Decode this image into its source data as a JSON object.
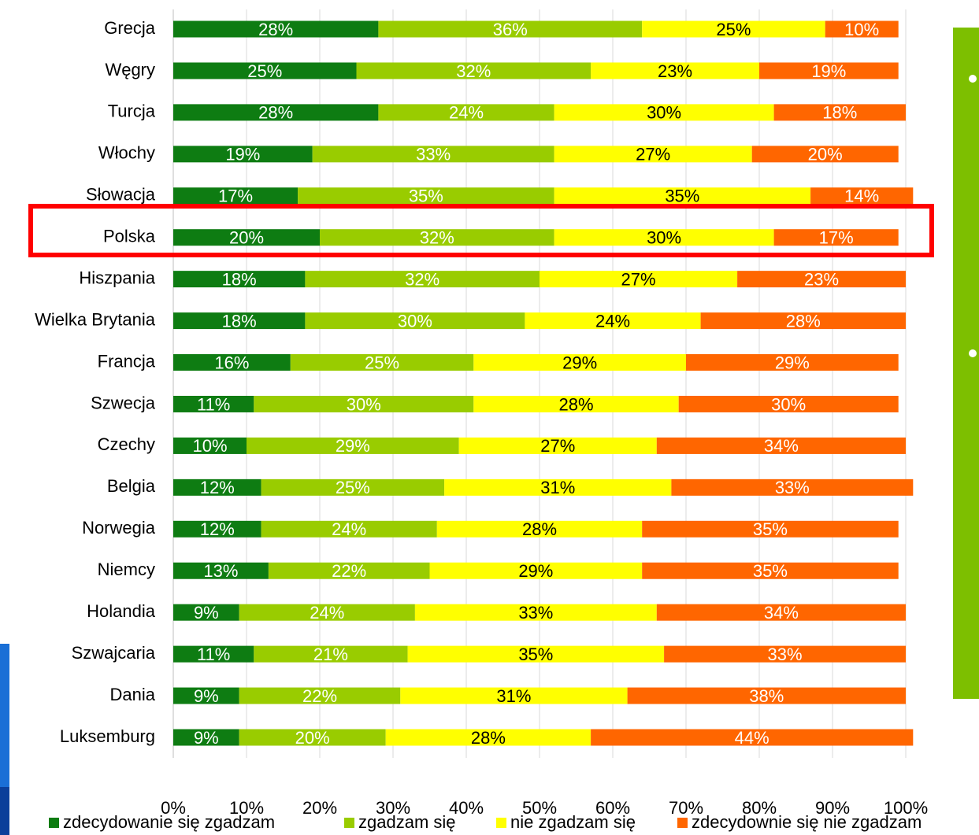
{
  "chart_data": {
    "type": "bar",
    "orientation": "horizontal",
    "stacked": true,
    "categories": [
      "Grecja",
      "Węgry",
      "Turcja",
      "Włochy",
      "Słowacja",
      "Polska",
      "Hiszpania",
      "Wielka Brytania",
      "Francja",
      "Szwecja",
      "Czechy",
      "Belgia",
      "Norwegia",
      "Niemcy",
      "Holandia",
      "Szwajcaria",
      "Dania",
      "Luksemburg"
    ],
    "series": [
      {
        "name": "zdecydowanie się zgadzam",
        "color": "#0e7c12",
        "label_color": "#ffffff",
        "values": [
          28,
          25,
          28,
          19,
          17,
          20,
          18,
          18,
          16,
          11,
          10,
          12,
          12,
          13,
          9,
          11,
          9,
          9
        ],
        "value_labels": [
          "28%",
          "25%",
          "28%",
          "19%",
          "17%",
          "20%",
          "18%",
          "18%",
          "16%",
          "11%",
          "10%",
          "12%",
          "12%",
          "13%",
          "9%",
          "11%",
          "9%",
          "9%"
        ]
      },
      {
        "name": "zgadzam się",
        "color": "#99cc00",
        "label_color": "#ffffff",
        "values": [
          36,
          32,
          24,
          33,
          35,
          32,
          32,
          30,
          25,
          30,
          29,
          25,
          24,
          22,
          24,
          21,
          22,
          20
        ],
        "value_labels": [
          "36%",
          "32%",
          "24%",
          "33%",
          "35%",
          "32%",
          "32%",
          "30%",
          "25%",
          "30%",
          "29%",
          "25%",
          "24%",
          "22%",
          "24%",
          "21%",
          "22%",
          "20%"
        ]
      },
      {
        "name": "nie zgadzam się",
        "color": "#ffff00",
        "label_color": "#000000",
        "values": [
          25,
          23,
          30,
          27,
          35,
          30,
          27,
          24,
          29,
          28,
          27,
          31,
          28,
          29,
          33,
          35,
          31,
          28
        ],
        "value_labels": [
          "25%",
          "23%",
          "30%",
          "27%",
          "35%",
          "30%",
          "27%",
          "24%",
          "29%",
          "28%",
          "27%",
          "31%",
          "28%",
          "29%",
          "33%",
          "35%",
          "31%",
          "28%"
        ]
      },
      {
        "name": "zdecydownie się nie zgadzam",
        "color": "#ff6600",
        "label_color": "#ffffff",
        "values": [
          10,
          19,
          18,
          20,
          14,
          17,
          23,
          28,
          29,
          30,
          34,
          33,
          35,
          35,
          34,
          33,
          38,
          44
        ],
        "value_labels": [
          "10%",
          "19%",
          "18%",
          "20%",
          "14%",
          "17%",
          "23%",
          "28%",
          "29%",
          "30%",
          "34%",
          "33%",
          "35%",
          "35%",
          "34%",
          "33%",
          "38%",
          "44%"
        ]
      }
    ],
    "xlim": [
      0,
      100
    ],
    "xticks": [
      {
        "value": 0,
        "label": "0%"
      },
      {
        "value": 10,
        "label": "10%"
      },
      {
        "value": 20,
        "label": "20%"
      },
      {
        "value": 30,
        "label": "30%"
      },
      {
        "value": 40,
        "label": "40%"
      },
      {
        "value": 50,
        "label": "50%"
      },
      {
        "value": 60,
        "label": "60%"
      },
      {
        "value": 70,
        "label": "70%"
      },
      {
        "value": 80,
        "label": "80%"
      },
      {
        "value": 90,
        "label": "90%"
      },
      {
        "value": 100,
        "label": "100%"
      }
    ],
    "grid": true,
    "legend": "bottom"
  }
}
